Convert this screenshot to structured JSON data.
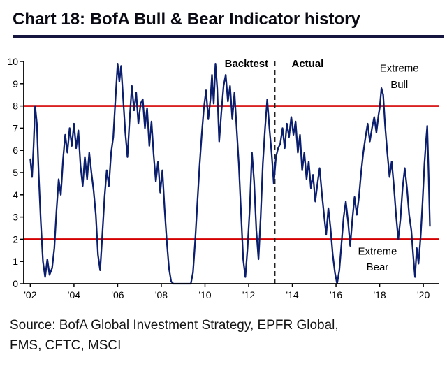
{
  "header": {
    "title": "Chart 18: BofA Bull & Bear Indicator history"
  },
  "footer": {
    "source_line1": "Source: BofA Global Investment Strategy, EPFR Global,",
    "source_line2": "FMS, CFTC, MSCI"
  },
  "colors": {
    "line": "#0b1e6e",
    "threshold": "#d40000",
    "divider": "#222222",
    "axis": "#000000",
    "title_underline": "#15153f"
  },
  "chart_data": {
    "type": "line",
    "title": "BofA Bull & Bear Indicator history",
    "xlabel": "",
    "ylabel": "",
    "xlim": [
      2001.7,
      2020.7
    ],
    "ylim": [
      0,
      10
    ],
    "grid": false,
    "legend": "none",
    "y_ticks": [
      0,
      1,
      2,
      3,
      4,
      5,
      6,
      7,
      8,
      9,
      10
    ],
    "x_ticks": [
      {
        "value": 2002,
        "label": "'02"
      },
      {
        "value": 2004,
        "label": "'04"
      },
      {
        "value": 2006,
        "label": "'06"
      },
      {
        "value": 2008,
        "label": "'08"
      },
      {
        "value": 2010,
        "label": "'10"
      },
      {
        "value": 2012,
        "label": "'12"
      },
      {
        "value": 2014,
        "label": "'14"
      },
      {
        "value": 2016,
        "label": "'16"
      },
      {
        "value": 2018,
        "label": "'18"
      },
      {
        "value": 2020,
        "label": "'20"
      }
    ],
    "thresholds": [
      {
        "y": 8,
        "label": "Extreme Bull"
      },
      {
        "y": 2,
        "label": "Extreme Bear"
      }
    ],
    "divider": {
      "x": 2013.2,
      "left_label": "Backtest",
      "right_label": "Actual"
    },
    "annotations": [
      {
        "text": "Backtest",
        "x": 2011.9,
        "y": 9.75,
        "bold": true
      },
      {
        "text": "Actual",
        "x": 2014.7,
        "y": 9.75,
        "bold": true
      },
      {
        "text": "Extreme",
        "x": 2018.9,
        "y": 9.55,
        "bold": false
      },
      {
        "text": "Bull",
        "x": 2018.9,
        "y": 8.8,
        "bold": false
      },
      {
        "text": "Extreme",
        "x": 2017.9,
        "y": 1.3,
        "bold": false
      },
      {
        "text": "Bear",
        "x": 2017.9,
        "y": 0.6,
        "bold": false
      }
    ],
    "series": [
      {
        "name": "BofA Bull & Bear Indicator",
        "x": [
          2002.0,
          2002.08,
          2002.15,
          2002.22,
          2002.3,
          2002.38,
          2002.48,
          2002.58,
          2002.68,
          2002.78,
          2002.88,
          2003.0,
          2003.1,
          2003.2,
          2003.3,
          2003.4,
          2003.5,
          2003.6,
          2003.7,
          2003.8,
          2003.9,
          2004.0,
          2004.1,
          2004.2,
          2004.3,
          2004.4,
          2004.5,
          2004.6,
          2004.7,
          2004.8,
          2004.9,
          2005.0,
          2005.1,
          2005.2,
          2005.3,
          2005.4,
          2005.5,
          2005.6,
          2005.7,
          2005.8,
          2005.9,
          2006.0,
          2006.08,
          2006.16,
          2006.25,
          2006.35,
          2006.45,
          2006.55,
          2006.65,
          2006.75,
          2006.85,
          2006.95,
          2007.05,
          2007.15,
          2007.25,
          2007.35,
          2007.45,
          2007.55,
          2007.65,
          2007.75,
          2007.85,
          2007.95,
          2008.05,
          2008.15,
          2008.25,
          2008.35,
          2008.45,
          2008.55,
          2009.35,
          2009.45,
          2009.55,
          2009.65,
          2009.75,
          2009.85,
          2009.95,
          2010.05,
          2010.15,
          2010.25,
          2010.32,
          2010.4,
          2010.48,
          2010.56,
          2010.65,
          2010.75,
          2010.85,
          2010.95,
          2011.05,
          2011.15,
          2011.25,
          2011.35,
          2011.45,
          2011.55,
          2011.65,
          2011.75,
          2011.85,
          2011.95,
          2012.05,
          2012.15,
          2012.25,
          2012.35,
          2012.45,
          2012.55,
          2012.65,
          2012.75,
          2012.85,
          2012.95,
          2013.05,
          2013.15,
          2013.25,
          2013.35,
          2013.45,
          2013.55,
          2013.65,
          2013.75,
          2013.85,
          2013.95,
          2014.05,
          2014.15,
          2014.25,
          2014.35,
          2014.45,
          2014.55,
          2014.65,
          2014.75,
          2014.85,
          2014.95,
          2015.05,
          2015.15,
          2015.25,
          2015.35,
          2015.45,
          2015.55,
          2015.65,
          2015.75,
          2015.85,
          2015.95,
          2016.05,
          2016.15,
          2016.25,
          2016.35,
          2016.45,
          2016.55,
          2016.65,
          2016.75,
          2016.85,
          2016.95,
          2017.05,
          2017.15,
          2017.25,
          2017.35,
          2017.45,
          2017.55,
          2017.65,
          2017.75,
          2017.85,
          2017.95,
          2018.0,
          2018.08,
          2018.16,
          2018.25,
          2018.35,
          2018.45,
          2018.55,
          2018.65,
          2018.75,
          2018.85,
          2018.95,
          2019.05,
          2019.15,
          2019.25,
          2019.35,
          2019.45,
          2019.55,
          2019.62,
          2019.7,
          2019.78,
          2019.88,
          2019.96,
          2020.05,
          2020.12,
          2020.18,
          2020.24,
          2020.3
        ],
        "y": [
          5.6,
          4.8,
          6.2,
          8.0,
          7.2,
          5.0,
          2.8,
          1.0,
          0.3,
          1.1,
          0.4,
          0.7,
          1.6,
          3.3,
          4.7,
          4.0,
          5.6,
          6.7,
          5.9,
          7.0,
          6.2,
          7.2,
          6.1,
          6.9,
          5.3,
          4.4,
          5.7,
          4.7,
          5.9,
          5.0,
          4.2,
          3.1,
          1.3,
          0.6,
          2.2,
          3.9,
          5.1,
          4.4,
          5.9,
          6.6,
          8.3,
          9.9,
          9.1,
          9.8,
          8.4,
          6.8,
          5.7,
          7.4,
          8.9,
          7.8,
          8.6,
          7.2,
          8.1,
          8.3,
          7.0,
          7.9,
          6.2,
          7.3,
          5.8,
          4.6,
          5.5,
          4.1,
          5.1,
          3.4,
          1.9,
          0.7,
          0.1,
          0.0,
          0.0,
          0.5,
          1.9,
          3.6,
          5.3,
          6.7,
          7.9,
          8.7,
          7.4,
          8.3,
          9.4,
          8.1,
          9.9,
          8.8,
          6.4,
          7.7,
          8.9,
          9.4,
          8.2,
          8.9,
          7.4,
          8.6,
          7.0,
          5.4,
          3.2,
          1.1,
          0.3,
          1.6,
          3.4,
          5.9,
          4.6,
          2.4,
          1.1,
          3.0,
          5.4,
          7.0,
          8.3,
          7.0,
          5.9,
          4.5,
          5.7,
          6.1,
          6.3,
          7.0,
          6.1,
          7.2,
          6.6,
          7.5,
          6.7,
          7.3,
          5.9,
          6.7,
          5.1,
          5.9,
          4.7,
          5.5,
          4.3,
          4.9,
          3.7,
          4.5,
          5.2,
          4.1,
          3.1,
          2.2,
          3.4,
          2.5,
          1.3,
          0.5,
          0.0,
          0.6,
          1.8,
          3.0,
          3.7,
          2.8,
          1.7,
          2.9,
          3.9,
          3.1,
          3.9,
          5.0,
          5.9,
          6.6,
          7.2,
          6.4,
          7.0,
          7.5,
          6.8,
          7.6,
          7.9,
          8.8,
          8.5,
          7.1,
          5.9,
          4.8,
          5.5,
          4.4,
          3.1,
          2.0,
          2.9,
          4.3,
          5.2,
          4.3,
          3.1,
          2.4,
          1.1,
          0.3,
          1.6,
          0.9,
          2.2,
          3.6,
          5.4,
          6.4,
          7.1,
          5.0,
          2.6
        ]
      }
    ]
  }
}
